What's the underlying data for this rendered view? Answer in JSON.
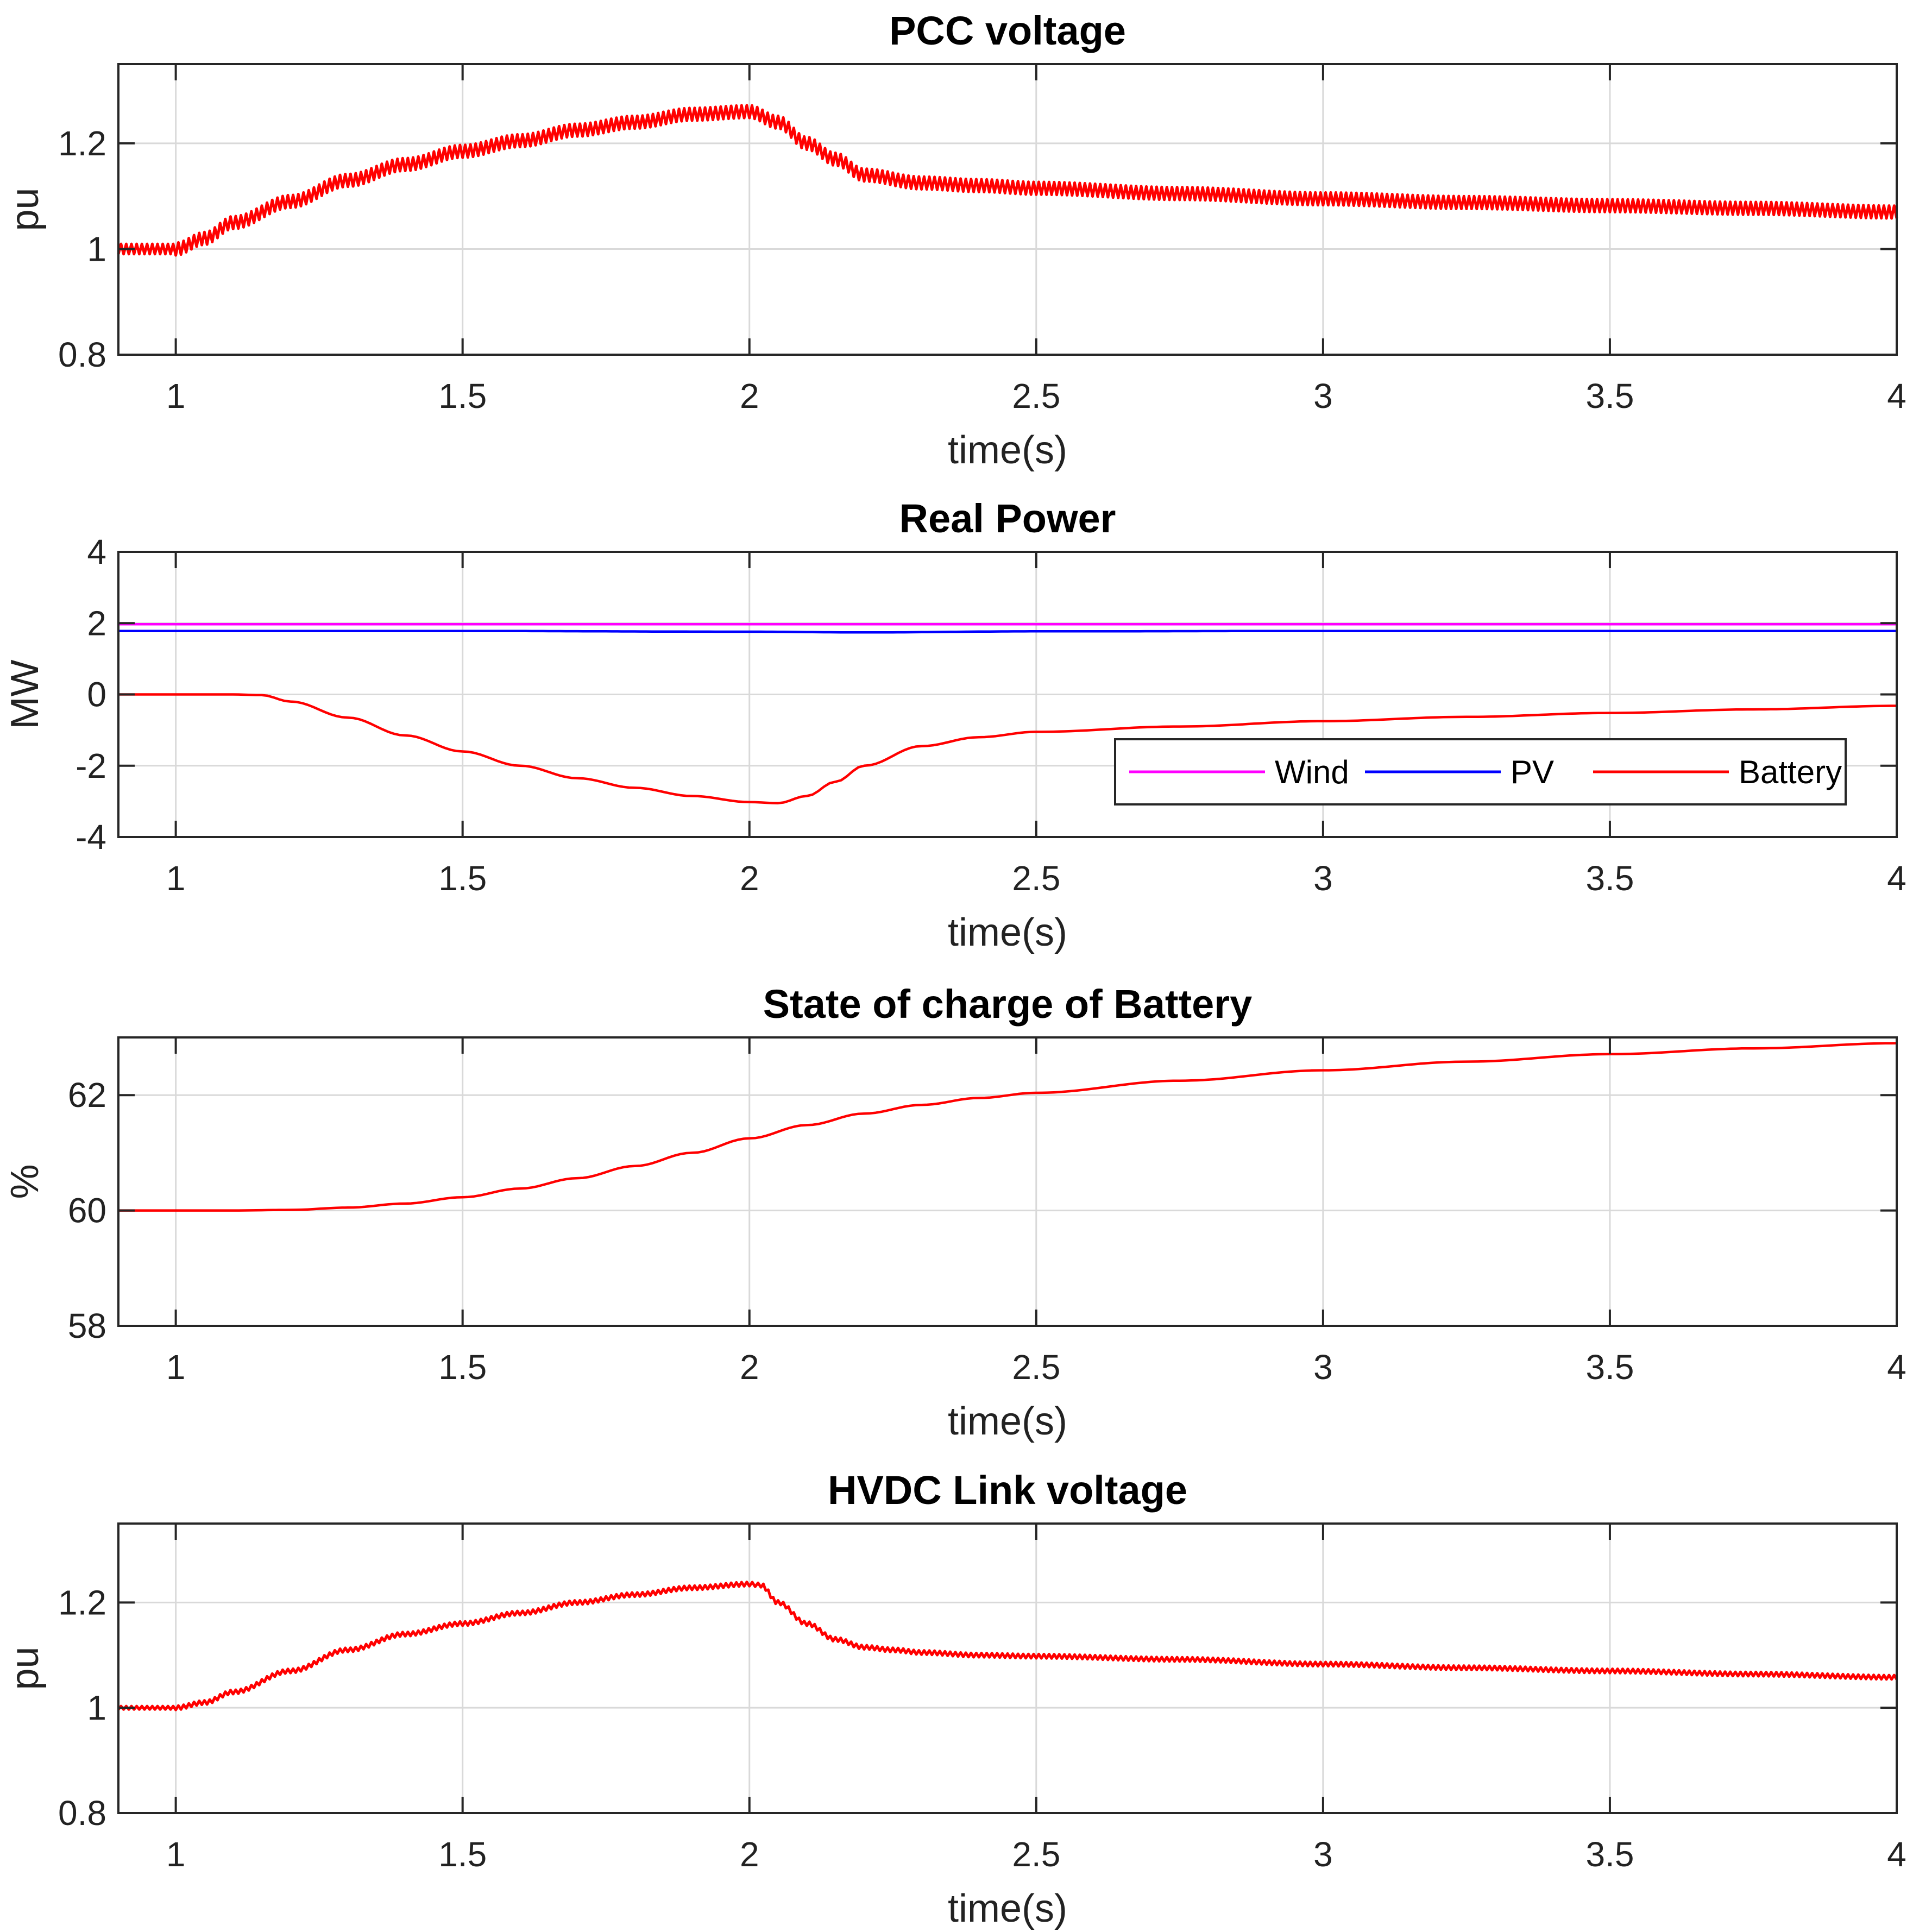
{
  "chart_data": [
    {
      "type": "line",
      "title": "PCC voltage",
      "xlabel": "time(s)",
      "ylabel": "pu",
      "xlim": [
        0.9,
        4
      ],
      "ylim": [
        0.8,
        1.35
      ],
      "xticks": [
        1,
        1.5,
        2,
        2.5,
        3,
        3.5,
        4
      ],
      "xtick_labels": [
        "1",
        "1.5",
        "2",
        "2.5",
        "3",
        "3.5",
        "4"
      ],
      "yticks": [
        0.8,
        1,
        1.2
      ],
      "ytick_labels": [
        "0.8",
        "1",
        "1.2"
      ],
      "grid": true,
      "series": [
        {
          "name": "PCC voltage",
          "color": "#ff0000",
          "ripple": 0.012,
          "x": [
            0.9,
            1.0,
            1.05,
            1.1,
            1.2,
            1.3,
            1.4,
            1.5,
            1.6,
            1.7,
            1.8,
            1.9,
            2.0,
            2.05,
            2.1,
            2.15,
            2.2,
            2.3,
            2.4,
            2.5,
            2.75,
            3.0,
            3.25,
            3.5,
            3.75,
            4.0
          ],
          "y": [
            1.0,
            1.0,
            1.02,
            1.05,
            1.09,
            1.13,
            1.16,
            1.185,
            1.205,
            1.225,
            1.24,
            1.255,
            1.26,
            1.24,
            1.2,
            1.17,
            1.14,
            1.125,
            1.12,
            1.115,
            1.105,
            1.095,
            1.088,
            1.082,
            1.077,
            1.07
          ]
        }
      ]
    },
    {
      "type": "line",
      "title": "Real Power",
      "xlabel": "time(s)",
      "ylabel": "MW",
      "xlim": [
        0.9,
        4
      ],
      "ylim": [
        -4,
        4
      ],
      "xticks": [
        1,
        1.5,
        2,
        2.5,
        3,
        3.5,
        4
      ],
      "xtick_labels": [
        "1",
        "1.5",
        "2",
        "2.5",
        "3",
        "3.5",
        "4"
      ],
      "yticks": [
        -4,
        -2,
        0,
        2,
        4
      ],
      "ytick_labels": [
        "-4",
        "-2",
        "0",
        "2",
        "4"
      ],
      "grid": true,
      "legend": {
        "location": "bottom-right",
        "entries": [
          "Wind",
          "PV",
          "Battery"
        ]
      },
      "series": [
        {
          "name": "Wind",
          "color": "#ff00ff",
          "x": [
            0.9,
            4.0
          ],
          "y": [
            1.97,
            1.97
          ]
        },
        {
          "name": "PV",
          "color": "#0000ff",
          "x": [
            0.9,
            1.5,
            2.0,
            2.2,
            2.5,
            3.0,
            4.0
          ],
          "y": [
            1.78,
            1.78,
            1.76,
            1.74,
            1.77,
            1.78,
            1.78
          ]
        },
        {
          "name": "Battery",
          "color": "#ff0000",
          "x": [
            0.9,
            1.0,
            1.1,
            1.15,
            1.2,
            1.3,
            1.4,
            1.5,
            1.6,
            1.7,
            1.8,
            1.9,
            2.0,
            2.05,
            2.1,
            2.15,
            2.2,
            2.3,
            2.4,
            2.5,
            2.75,
            3.0,
            3.25,
            3.5,
            3.75,
            4.0
          ],
          "y": [
            0.0,
            0.0,
            0.0,
            -0.02,
            -0.2,
            -0.65,
            -1.15,
            -1.6,
            -2.0,
            -2.35,
            -2.62,
            -2.85,
            -3.02,
            -3.05,
            -2.85,
            -2.45,
            -2.0,
            -1.45,
            -1.2,
            -1.05,
            -0.9,
            -0.75,
            -0.63,
            -0.52,
            -0.42,
            -0.32
          ]
        }
      ]
    },
    {
      "type": "line",
      "title": "State of charge of Battery",
      "xlabel": "time(s)",
      "ylabel": "%",
      "xlim": [
        0.9,
        4
      ],
      "ylim": [
        58,
        63
      ],
      "xticks": [
        1,
        1.5,
        2,
        2.5,
        3,
        3.5,
        4
      ],
      "xtick_labels": [
        "1",
        "1.5",
        "2",
        "2.5",
        "3",
        "3.5",
        "4"
      ],
      "yticks": [
        58,
        60,
        62
      ],
      "ytick_labels": [
        "58",
        "60",
        "62"
      ],
      "grid": true,
      "series": [
        {
          "name": "SOC",
          "color": "#ff0000",
          "x": [
            0.9,
            1.0,
            1.1,
            1.2,
            1.3,
            1.4,
            1.5,
            1.6,
            1.7,
            1.8,
            1.9,
            2.0,
            2.1,
            2.2,
            2.3,
            2.4,
            2.5,
            2.75,
            3.0,
            3.25,
            3.5,
            3.75,
            4.0
          ],
          "y": [
            60.0,
            60.0,
            60.0,
            60.01,
            60.05,
            60.12,
            60.23,
            60.38,
            60.56,
            60.77,
            61.0,
            61.25,
            61.48,
            61.68,
            61.83,
            61.95,
            62.04,
            62.25,
            62.43,
            62.58,
            62.71,
            62.81,
            62.9
          ]
        }
      ]
    },
    {
      "type": "line",
      "title": "HVDC Link voltage",
      "xlabel": "time(s)",
      "ylabel": "pu",
      "xlim": [
        0.9,
        4
      ],
      "ylim": [
        0.8,
        1.35
      ],
      "xticks": [
        1,
        1.5,
        2,
        2.5,
        3,
        3.5,
        4
      ],
      "xtick_labels": [
        "1",
        "1.5",
        "2",
        "2.5",
        "3",
        "3.5",
        "4"
      ],
      "yticks": [
        0.8,
        1,
        1.2
      ],
      "ytick_labels": [
        "0.8",
        "1",
        "1.2"
      ],
      "grid": true,
      "series": [
        {
          "name": "HVDC Link voltage",
          "color": "#ff0000",
          "ripple": 0.004,
          "x": [
            0.9,
            1.0,
            1.05,
            1.1,
            1.2,
            1.3,
            1.4,
            1.5,
            1.6,
            1.7,
            1.8,
            1.9,
            2.0,
            2.02,
            2.05,
            2.1,
            2.15,
            2.2,
            2.25,
            2.3,
            2.4,
            2.5,
            2.75,
            3.0,
            3.25,
            3.5,
            3.75,
            4.0
          ],
          "y": [
            1.0,
            1.0,
            1.01,
            1.03,
            1.07,
            1.11,
            1.14,
            1.16,
            1.18,
            1.2,
            1.215,
            1.228,
            1.235,
            1.233,
            1.2,
            1.16,
            1.13,
            1.115,
            1.11,
            1.105,
            1.1,
            1.098,
            1.092,
            1.083,
            1.076,
            1.07,
            1.064,
            1.058
          ]
        }
      ]
    }
  ]
}
